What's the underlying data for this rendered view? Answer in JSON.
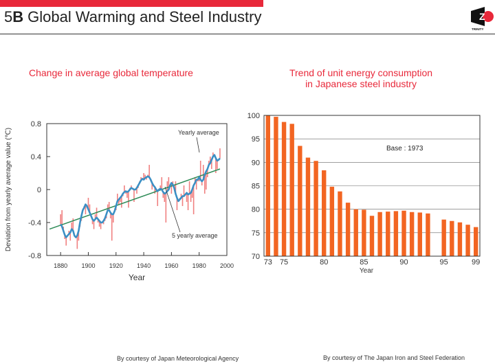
{
  "slide": {
    "number": "5",
    "letter": "B",
    "title": "Global Warming and Steel Industry"
  },
  "logo": {
    "text": "TRINITY"
  },
  "colors": {
    "accent": "#e8283a",
    "bar": "#f26522",
    "yearly": "#f08080",
    "five_year": "#3b8fc4",
    "trend": "#2e8b57"
  },
  "chart_data": [
    {
      "type": "line",
      "title": "Change in average global temperature",
      "xlabel": "Year",
      "ylabel": "Deviation from yearly average value (℃)",
      "xlim": [
        1870,
        2000
      ],
      "ylim": [
        -0.8,
        0.8
      ],
      "xticks": [
        "1880",
        "1900",
        "1920",
        "1940",
        "1960",
        "1980",
        "2000"
      ],
      "yticks": [
        "0.8",
        "0.4",
        "0",
        "-0.4",
        "-0.8"
      ],
      "annotations": {
        "yearly": "Yearly average",
        "five_year": "5 yearly average"
      },
      "x": [
        1880,
        1881,
        1882,
        1883,
        1884,
        1885,
        1886,
        1887,
        1888,
        1889,
        1890,
        1891,
        1892,
        1893,
        1894,
        1895,
        1896,
        1897,
        1898,
        1899,
        1900,
        1901,
        1902,
        1903,
        1904,
        1905,
        1906,
        1907,
        1908,
        1909,
        1910,
        1911,
        1912,
        1913,
        1914,
        1915,
        1916,
        1917,
        1918,
        1919,
        1920,
        1921,
        1922,
        1923,
        1924,
        1925,
        1926,
        1927,
        1928,
        1929,
        1930,
        1931,
        1932,
        1933,
        1934,
        1935,
        1936,
        1937,
        1938,
        1939,
        1940,
        1941,
        1942,
        1943,
        1944,
        1945,
        1946,
        1947,
        1948,
        1949,
        1950,
        1951,
        1952,
        1953,
        1954,
        1955,
        1956,
        1957,
        1958,
        1959,
        1960,
        1961,
        1962,
        1963,
        1964,
        1965,
        1966,
        1967,
        1968,
        1969,
        1970,
        1971,
        1972,
        1973,
        1974,
        1975,
        1976,
        1977,
        1978,
        1979,
        1980,
        1981,
        1982,
        1983,
        1984,
        1985,
        1986,
        1987,
        1988,
        1989,
        1990,
        1991,
        1992,
        1993,
        1994,
        1995
      ],
      "series": [
        {
          "name": "Yearly average",
          "values": [
            -0.3,
            -0.25,
            -0.45,
            -0.6,
            -0.68,
            -0.55,
            -0.5,
            -0.62,
            -0.4,
            -0.35,
            -0.55,
            -0.58,
            -0.72,
            -0.62,
            -0.45,
            -0.38,
            -0.25,
            -0.2,
            -0.3,
            -0.22,
            -0.1,
            -0.18,
            -0.32,
            -0.42,
            -0.48,
            -0.3,
            -0.22,
            -0.4,
            -0.45,
            -0.48,
            -0.4,
            -0.42,
            -0.38,
            -0.35,
            -0.18,
            -0.15,
            -0.35,
            -0.62,
            -0.4,
            -0.25,
            -0.25,
            -0.05,
            -0.18,
            -0.15,
            -0.22,
            -0.08,
            0.05,
            -0.05,
            -0.1,
            -0.22,
            0.02,
            0.05,
            0.0,
            -0.15,
            0.0,
            -0.05,
            0.02,
            0.1,
            0.15,
            0.12,
            0.2,
            0.18,
            0.12,
            0.18,
            0.3,
            0.1,
            0.0,
            0.05,
            -0.05,
            -0.02,
            -0.2,
            0.0,
            0.05,
            0.15,
            -0.1,
            -0.15,
            -0.4,
            0.1,
            0.15,
            0.05,
            -0.05,
            0.1,
            0.05,
            0.1,
            -0.25,
            -0.15,
            -0.1,
            -0.05,
            -0.2,
            0.05,
            -0.05,
            -0.15,
            -0.25,
            0.1,
            -0.15,
            -0.1,
            -0.3,
            0.15,
            0.0,
            0.1,
            0.1,
            0.35,
            0.05,
            0.3,
            -0.05,
            0.0,
            0.15,
            0.35,
            0.4,
            0.25,
            0.45,
            0.4,
            0.2,
            0.25,
            0.35,
            0.5
          ]
        },
        {
          "name": "5 yearly average",
          "values": [
            -0.42,
            -0.45,
            -0.5,
            -0.55,
            -0.58,
            -0.56,
            -0.54,
            -0.52,
            -0.48,
            -0.5,
            -0.56,
            -0.58,
            -0.56,
            -0.5,
            -0.4,
            -0.32,
            -0.25,
            -0.22,
            -0.18,
            -0.2,
            -0.24,
            -0.28,
            -0.32,
            -0.36,
            -0.38,
            -0.36,
            -0.34,
            -0.36,
            -0.38,
            -0.4,
            -0.4,
            -0.38,
            -0.35,
            -0.3,
            -0.25,
            -0.25,
            -0.28,
            -0.3,
            -0.3,
            -0.26,
            -0.2,
            -0.14,
            -0.12,
            -0.1,
            -0.08,
            -0.05,
            -0.03,
            -0.02,
            -0.03,
            -0.02,
            0.0,
            0.02,
            0.01,
            0.0,
            0.0,
            0.02,
            0.05,
            0.08,
            0.11,
            0.13,
            0.12,
            0.14,
            0.15,
            0.16,
            0.15,
            0.12,
            0.08,
            0.05,
            0.03,
            0.0,
            -0.02,
            0.0,
            0.01,
            0.0,
            -0.03,
            -0.05,
            -0.04,
            -0.02,
            0.0,
            0.05,
            0.08,
            0.06,
            0.02,
            -0.05,
            -0.1,
            -0.14,
            -0.12,
            -0.1,
            -0.08,
            -0.08,
            -0.06,
            -0.04,
            -0.06,
            -0.05,
            -0.04,
            0.0,
            0.05,
            0.08,
            0.12,
            0.12,
            0.15,
            0.12,
            0.1,
            0.12,
            0.18,
            0.22,
            0.25,
            0.3,
            0.32,
            0.36,
            0.4,
            0.42,
            0.38,
            0.35,
            0.36,
            0.38
          ]
        },
        {
          "name": "Trend",
          "values_from_to": [
            [
              1872,
              -0.48
            ],
            [
              1995,
              0.25
            ]
          ]
        }
      ]
    },
    {
      "type": "bar",
      "title": "Trend of unit energy consumption in Japanese steel industry",
      "title_lines": [
        "Trend of unit energy consumption",
        "in Japanese steel industry"
      ],
      "xlabel": "Year",
      "annotation": "Base : 1973",
      "ylim": [
        70,
        100
      ],
      "yticks": [
        "100",
        "95",
        "90",
        "85",
        "80",
        "75",
        "70"
      ],
      "xtick_labels": [
        {
          "year": 1973,
          "label": "73"
        },
        {
          "year": 1975,
          "label": "75"
        },
        {
          "year": 1980,
          "label": "80"
        },
        {
          "year": 1985,
          "label": "85"
        },
        {
          "year": 1990,
          "label": "90"
        },
        {
          "year": 1995,
          "label": "95"
        },
        {
          "year": 1999,
          "label": "99"
        }
      ],
      "categories": [
        1973,
        1974,
        1975,
        1976,
        1977,
        1978,
        1979,
        1980,
        1981,
        1982,
        1983,
        1984,
        1985,
        1986,
        1987,
        1988,
        1989,
        1990,
        1991,
        1992,
        1993,
        1994,
        1995,
        1996,
        1997,
        1998,
        1999
      ],
      "values": [
        100,
        99.7,
        98.6,
        98.2,
        93.5,
        91,
        90.3,
        88.3,
        84.8,
        83.8,
        81.4,
        80,
        79.9,
        78.6,
        79.4,
        79.5,
        79.6,
        79.7,
        79.4,
        79.3,
        79.1,
        null,
        77.8,
        77.5,
        77.2,
        76.7,
        76.2
      ]
    }
  ],
  "credits": {
    "left": "By courtesy of Japan Meteorological Agency",
    "right": "By courtesy of The Japan Iron and Steel Federation"
  }
}
